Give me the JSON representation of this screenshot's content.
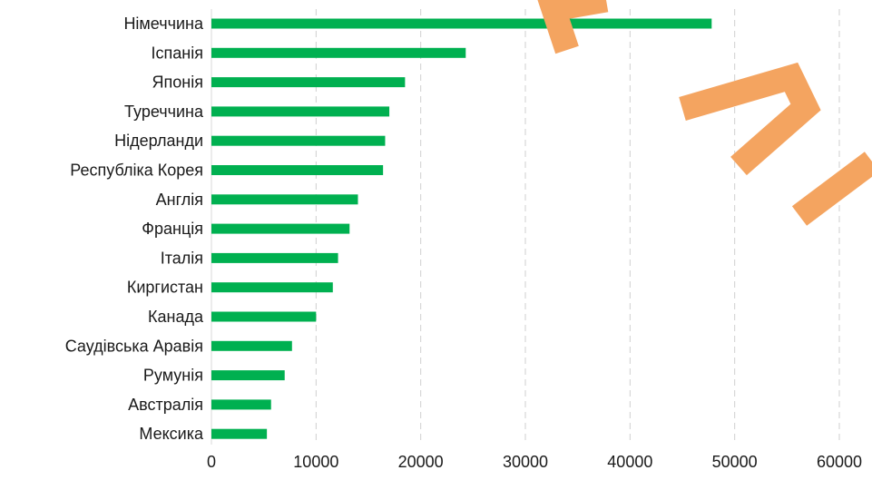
{
  "chart_data": {
    "type": "bar",
    "orientation": "horizontal",
    "categories": [
      "Німеччина",
      "Іспанія",
      "Японія",
      "Туреччина",
      "Нідерланди",
      "Республіка Корея",
      "Англія",
      "Франція",
      "Італія",
      "Киргистан",
      "Канада",
      "Саудівська Аравія",
      "Румунія",
      "Австралія",
      "Мексика"
    ],
    "values": [
      47800,
      24300,
      18500,
      17000,
      16600,
      16400,
      14000,
      13200,
      12100,
      11600,
      10000,
      7700,
      7000,
      5700,
      5300
    ],
    "xlim": [
      0,
      60000
    ],
    "xticks": [
      0,
      10000,
      20000,
      30000,
      40000,
      50000,
      60000
    ],
    "xtick_labels": [
      "0",
      "10000",
      "20000",
      "30000",
      "40000",
      "50000",
      "60000"
    ],
    "title": "",
    "xlabel": "",
    "ylabel": "",
    "grid": "vertical dashed",
    "bar_color": "#00b050",
    "watermark_color": "#f4a460"
  }
}
